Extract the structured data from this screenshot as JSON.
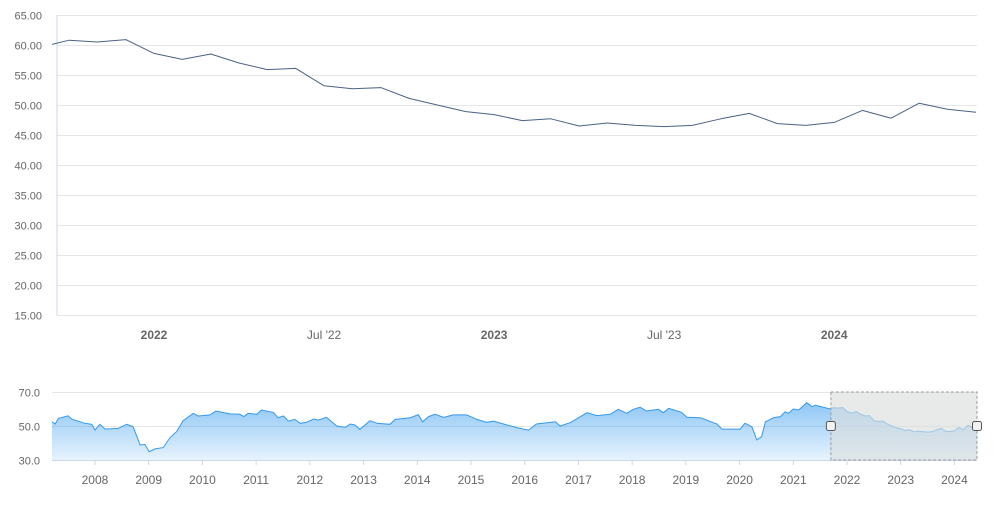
{
  "colors": {
    "main_line": "#4b6286",
    "nav_line": "#3399ee",
    "nav_fill": "#3399ee",
    "grid": "#e6e6e6",
    "mask": "#dcdedf"
  },
  "chart_data": [
    {
      "type": "line",
      "name": "main",
      "title": "",
      "xlabel": "",
      "ylabel": "",
      "x_unit": "decimal year",
      "xlim": [
        2021.7,
        2024.42
      ],
      "ylim": [
        15,
        65
      ],
      "grid": true,
      "y_ticks": [
        "15.00",
        "20.00",
        "25.00",
        "30.00",
        "35.00",
        "40.00",
        "45.00",
        "50.00",
        "55.00",
        "60.00",
        "65.00"
      ],
      "y_tick_values": [
        15,
        20,
        25,
        30,
        35,
        40,
        45,
        50,
        55,
        60,
        65
      ],
      "x_ticks": [
        {
          "label": "2022",
          "value": 2022.0,
          "bold": true
        },
        {
          "label": "Jul '22",
          "value": 2022.5,
          "bold": false
        },
        {
          "label": "2023",
          "value": 2023.0,
          "bold": true
        },
        {
          "label": "Jul '23",
          "value": 2023.5,
          "bold": false
        },
        {
          "label": "2024",
          "value": 2024.0,
          "bold": true
        }
      ],
      "x": [
        2021.7,
        2021.75,
        2021.833,
        2021.917,
        2022.0,
        2022.083,
        2022.167,
        2022.25,
        2022.333,
        2022.417,
        2022.5,
        2022.583,
        2022.667,
        2022.75,
        2022.833,
        2022.917,
        2023.0,
        2023.083,
        2023.167,
        2023.25,
        2023.333,
        2023.417,
        2023.5,
        2023.583,
        2023.667,
        2023.75,
        2023.833,
        2023.917,
        2024.0,
        2024.083,
        2024.167,
        2024.25,
        2024.333,
        2024.417
      ],
      "values": [
        60.1,
        60.8,
        60.5,
        60.9,
        58.6,
        57.6,
        58.5,
        57.0,
        55.9,
        56.1,
        53.2,
        52.7,
        52.9,
        51.1,
        50.0,
        48.9,
        48.4,
        47.4,
        47.7,
        46.5,
        47.0,
        46.6,
        46.4,
        46.6,
        47.7,
        48.6,
        46.9,
        46.6,
        47.1,
        49.1,
        47.8,
        50.3,
        49.3,
        48.8
      ]
    },
    {
      "type": "area",
      "name": "navigator",
      "x_unit": "decimal year",
      "xlim": [
        2007.2,
        2024.42
      ],
      "ylim": [
        30,
        70
      ],
      "y_ticks": [
        "30.0",
        "50.0",
        "70.0"
      ],
      "y_tick_values": [
        30,
        50,
        70
      ],
      "x_ticks": [
        "2008",
        "2009",
        "2010",
        "2011",
        "2012",
        "2013",
        "2014",
        "2015",
        "2016",
        "2017",
        "2018",
        "2019",
        "2020",
        "2021",
        "2022",
        "2023",
        "2024"
      ],
      "selected_range": [
        2021.7,
        2024.42
      ],
      "x": [
        2007.2,
        2007.26,
        2007.32,
        2007.5,
        2007.57,
        2007.81,
        2007.94,
        2008.0,
        2008.09,
        2008.19,
        2008.43,
        2008.59,
        2008.71,
        2008.84,
        2008.93,
        2009.01,
        2009.12,
        2009.27,
        2009.4,
        2009.52,
        2009.64,
        2009.83,
        2009.92,
        2010.14,
        2010.25,
        2010.51,
        2010.7,
        2010.77,
        2010.85,
        2011.01,
        2011.1,
        2011.32,
        2011.41,
        2011.51,
        2011.6,
        2011.72,
        2011.82,
        2011.94,
        2012.07,
        2012.16,
        2012.31,
        2012.5,
        2012.66,
        2012.75,
        2012.84,
        2012.93,
        2013.12,
        2013.25,
        2013.49,
        2013.59,
        2013.87,
        2014.02,
        2014.1,
        2014.21,
        2014.33,
        2014.49,
        2014.67,
        2014.92,
        2015.11,
        2015.29,
        2015.42,
        2015.67,
        2015.91,
        2016.07,
        2016.22,
        2016.57,
        2016.66,
        2016.85,
        2017.16,
        2017.34,
        2017.59,
        2017.74,
        2017.9,
        2018.02,
        2018.15,
        2018.27,
        2018.49,
        2018.58,
        2018.68,
        2018.92,
        2019.02,
        2019.27,
        2019.58,
        2019.67,
        2020.01,
        2020.1,
        2020.23,
        2020.32,
        2020.41,
        2020.48,
        2020.63,
        2020.76,
        2020.85,
        2020.91,
        2021.0,
        2021.1,
        2021.25,
        2021.35,
        2021.41,
        2021.69,
        2021.75,
        2021.833,
        2021.917,
        2022.0,
        2022.083,
        2022.167,
        2022.25,
        2022.333,
        2022.417,
        2022.5,
        2022.583,
        2022.667,
        2022.75,
        2022.833,
        2022.917,
        2023.0,
        2023.083,
        2023.167,
        2023.25,
        2023.333,
        2023.417,
        2023.5,
        2023.583,
        2023.667,
        2023.75,
        2023.833,
        2023.917,
        2024.0,
        2024.083,
        2024.167,
        2024.25,
        2024.333,
        2024.417
      ],
      "values": [
        52.5,
        51.2,
        54.5,
        56,
        54,
        51.6,
        51,
        47.6,
        51,
        48.2,
        48.6,
        51,
        49.6,
        38.8,
        39.2,
        34.9,
        36.5,
        37.3,
        43.3,
        46.7,
        53.1,
        57.5,
        55.9,
        56.5,
        58.8,
        57.1,
        56.9,
        55.5,
        57.5,
        56.9,
        59.4,
        58,
        54.9,
        55.9,
        52.9,
        53.9,
        51.6,
        52.2,
        54.1,
        53.5,
        55.1,
        50,
        49.2,
        51.2,
        50.6,
        48,
        53.1,
        51.6,
        51,
        53.9,
        54.9,
        56.7,
        52.5,
        55.5,
        56.9,
        55.1,
        56.5,
        56.5,
        53.9,
        52.2,
        52.9,
        50.6,
        48.6,
        47.6,
        51.2,
        52.5,
        50,
        52,
        57.8,
        56.1,
        56.9,
        59.8,
        57.5,
        59.8,
        61,
        58.8,
        59.8,
        57.8,
        60.4,
        58,
        55.1,
        54.9,
        51.2,
        48.2,
        48.2,
        51.6,
        49.6,
        41.8,
        43.7,
        52.5,
        54.9,
        55.5,
        58.4,
        57.5,
        60,
        59.4,
        63.7,
        61.4,
        62.2,
        60,
        60.8,
        60.5,
        60.9,
        58.6,
        57.6,
        58.5,
        57.0,
        55.9,
        56.1,
        53.2,
        52.7,
        52.9,
        51.1,
        50.0,
        48.9,
        48.4,
        47.4,
        47.7,
        46.5,
        47.0,
        46.6,
        46.4,
        46.6,
        47.7,
        48.6,
        46.9,
        46.6,
        47.1,
        49.1,
        47.8,
        50.3,
        49.3,
        48.8
      ]
    }
  ]
}
